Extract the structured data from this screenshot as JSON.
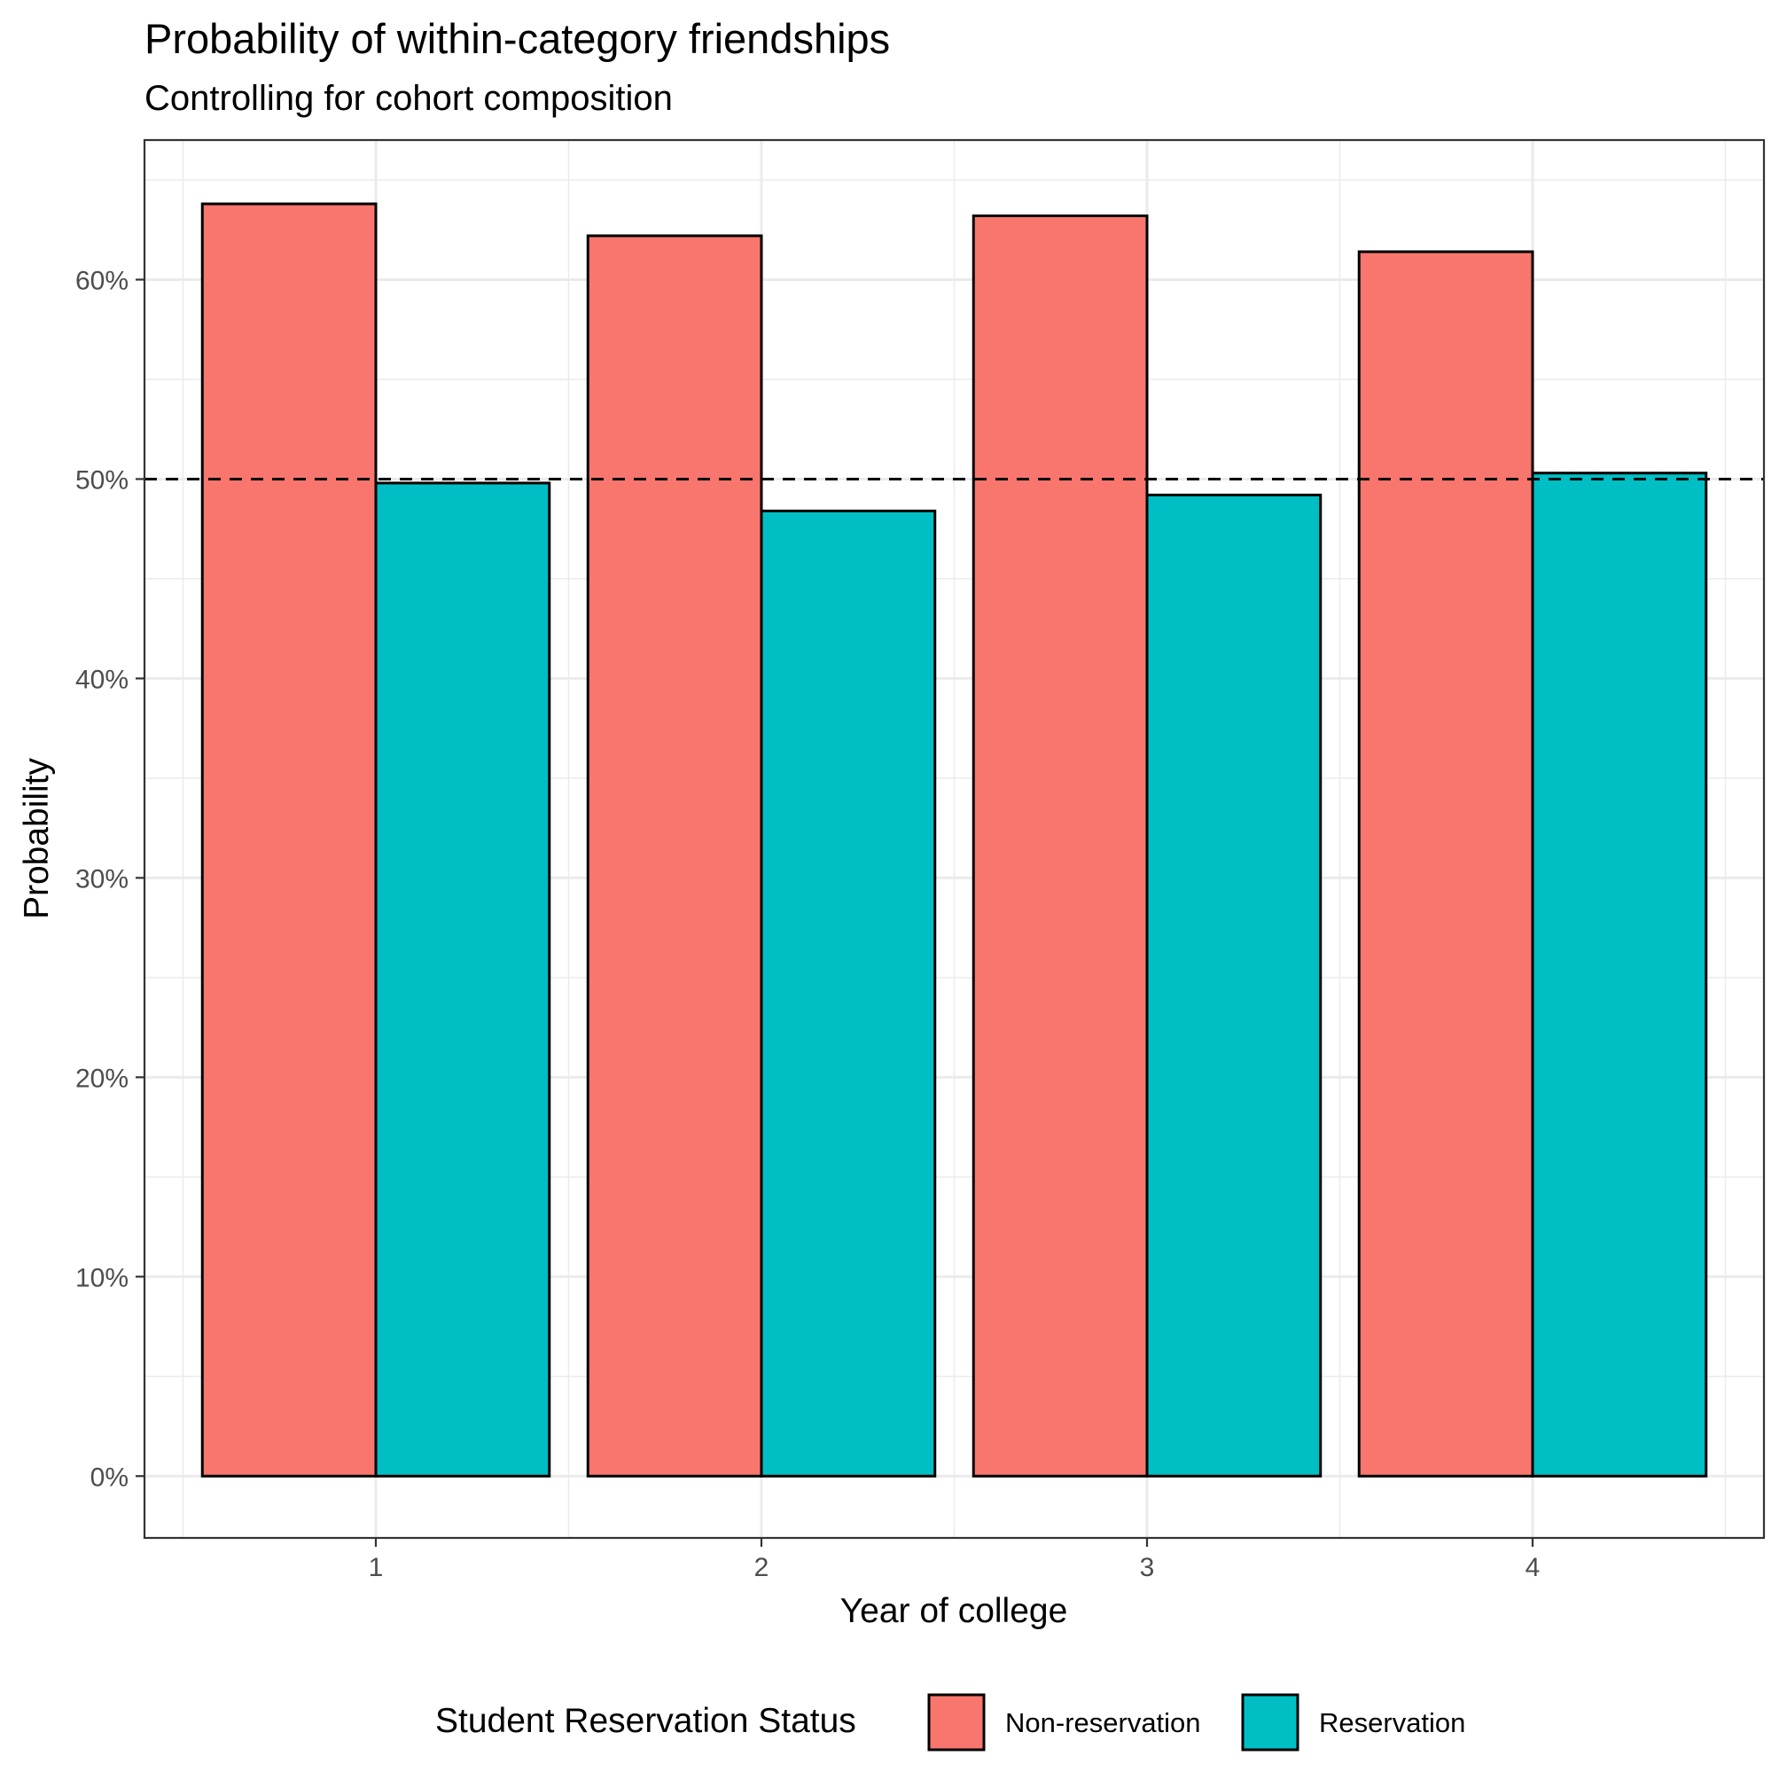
{
  "chart_data": {
    "type": "bar",
    "title": "Probability of within-category friendships",
    "subtitle": "Controlling for cohort composition",
    "xlabel": "Year of college",
    "ylabel": "Probability",
    "categories": [
      "1",
      "2",
      "3",
      "4"
    ],
    "series": [
      {
        "name": "Non-reservation",
        "color": "#F8766D",
        "values": [
          63.8,
          62.2,
          63.2,
          61.4
        ]
      },
      {
        "name": "Reservation",
        "color": "#00BFC4",
        "values": [
          49.8,
          48.4,
          49.2,
          50.3
        ]
      }
    ],
    "ylim": [
      -3.1,
      67.0
    ],
    "yticks": [
      0,
      10,
      20,
      30,
      40,
      50,
      60
    ],
    "ytick_labels": [
      "0%",
      "10%",
      "20%",
      "30%",
      "40%",
      "50%",
      "60%"
    ],
    "reference_line": {
      "value": 50,
      "style": "dashed",
      "color": "#000000"
    },
    "grid": true,
    "legend": {
      "title": "Student Reservation Status",
      "position": "bottom"
    }
  }
}
